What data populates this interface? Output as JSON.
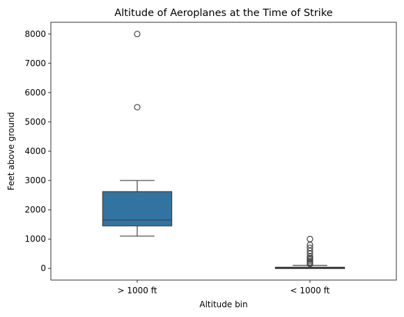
{
  "chart_data": {
    "type": "box",
    "title": "Altitude of Aeroplanes at the Time of Strike",
    "xlabel": "Altitude bin",
    "ylabel": "Feet above ground",
    "ylim": [
      -400,
      8400
    ],
    "yticks": [
      0,
      1000,
      2000,
      3000,
      4000,
      5000,
      6000,
      7000,
      8000
    ],
    "grid": false,
    "categories": [
      "> 1000 ft",
      "< 1000 ft"
    ],
    "boxes": [
      {
        "category": "> 1000 ft",
        "whisker_low": 1100,
        "q1": 1450,
        "median": 1650,
        "q3": 2620,
        "whisker_high": 3000,
        "outliers": [
          5500,
          8000
        ],
        "color": "#3274a1"
      },
      {
        "category": "< 1000 ft",
        "whisker_low": 0,
        "q1": 0,
        "median": 10,
        "q3": 40,
        "whisker_high": 100,
        "outliers": [
          150,
          200,
          250,
          300,
          350,
          400,
          500,
          600,
          700,
          800,
          1000
        ],
        "color": "#3274a1"
      }
    ]
  }
}
